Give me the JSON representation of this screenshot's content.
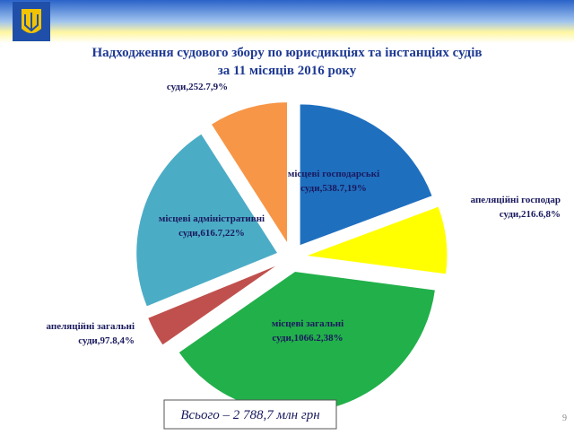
{
  "slide": {
    "page_number": 9
  },
  "chart_data": {
    "type": "pie",
    "title": [
      "Надходження судового збору по юрисдикціях та інстанціях судів",
      "за 11 місяців 2016 року"
    ],
    "labels": [
      [
        "місцеві господарські",
        "суди,538.7,19%"
      ],
      [
        "апеляційні господар",
        "суди,216.6,8%"
      ],
      [
        "місцеві загальні",
        "суди,1066.2,38%"
      ],
      [
        "апеляційні загальні",
        "суди,97.8,4%"
      ],
      [
        "місцеві адміністративні",
        "суди,616.7,22%"
      ],
      [
        "суди,252.7,9%"
      ]
    ],
    "values": [
      538.7,
      216.6,
      1066.2,
      97.8,
      616.7,
      252.7
    ],
    "colors": [
      "#1f6fbf",
      "#ffff00",
      "#22b04a",
      "#c0504d",
      "#4bacc6",
      "#f79646"
    ],
    "annotation": "Всього – 2 788,7 млн грн"
  }
}
